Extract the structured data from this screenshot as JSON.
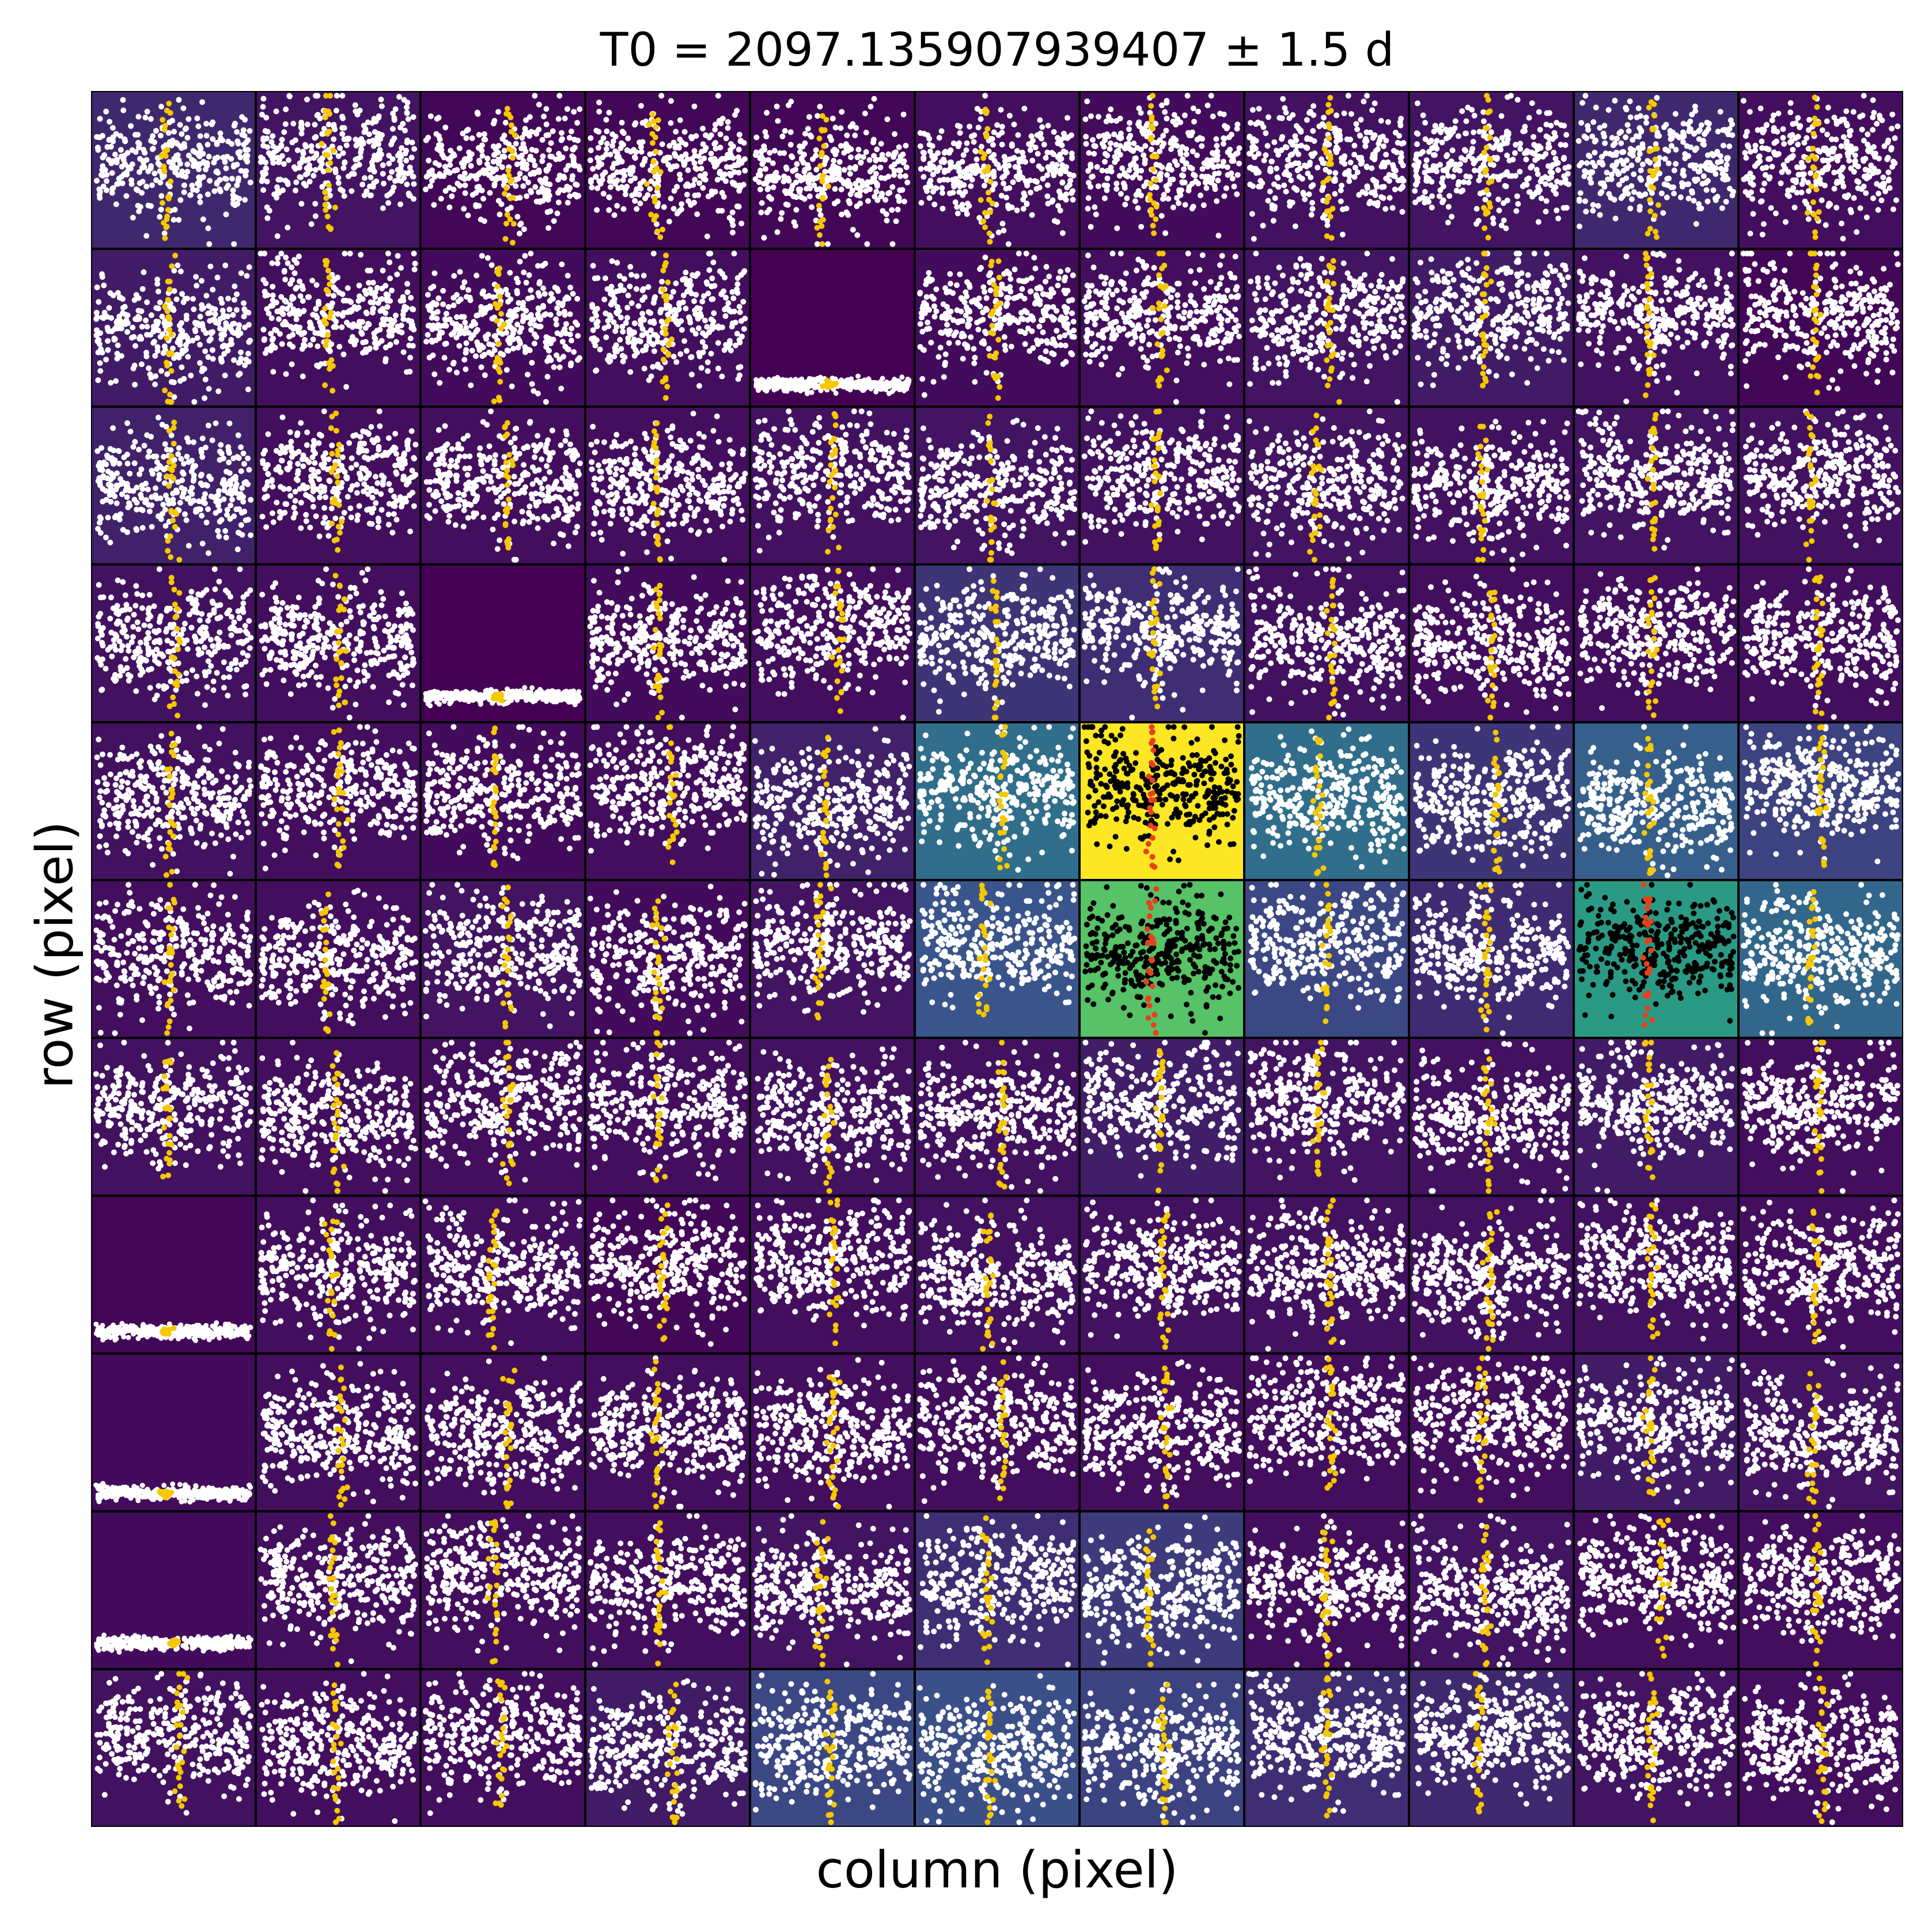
{
  "chart_data": {
    "type": "scatter",
    "title": "T0 = 2097.135907939407 ± 1.5 d",
    "xlabel": "column (pixel)",
    "ylabel": "row (pixel)",
    "grid_rows": 11,
    "grid_cols": 11,
    "ticks": false,
    "series_colors": {
      "out_of_transit": "#ffffff",
      "in_transit": "#f5c800",
      "aperture_out_of_transit": "#000000",
      "aperture_in_transit": "#e8401c"
    },
    "background_colormap": "viridis",
    "pixel_background_level": [
      [
        0.12,
        0.06,
        0.02,
        0.02,
        0.02,
        0.04,
        0.03,
        0.05,
        0.06,
        0.12,
        0.04
      ],
      [
        0.08,
        0.04,
        0.03,
        0.04,
        0.0,
        0.03,
        0.04,
        0.06,
        0.08,
        0.05,
        0.02
      ],
      [
        0.1,
        0.04,
        0.04,
        0.04,
        0.05,
        0.06,
        0.05,
        0.06,
        0.05,
        0.06,
        0.05
      ],
      [
        0.05,
        0.04,
        0.0,
        0.03,
        0.04,
        0.16,
        0.14,
        0.05,
        0.04,
        0.04,
        0.04
      ],
      [
        0.05,
        0.04,
        0.03,
        0.04,
        0.1,
        0.36,
        1.0,
        0.36,
        0.16,
        0.3,
        0.2
      ],
      [
        0.04,
        0.04,
        0.06,
        0.03,
        0.06,
        0.26,
        0.72,
        0.22,
        0.13,
        0.54,
        0.33
      ],
      [
        0.05,
        0.04,
        0.04,
        0.04,
        0.05,
        0.05,
        0.09,
        0.06,
        0.05,
        0.08,
        0.04
      ],
      [
        0.02,
        0.04,
        0.04,
        0.02,
        0.04,
        0.05,
        0.05,
        0.05,
        0.05,
        0.05,
        0.04
      ],
      [
        0.03,
        0.04,
        0.04,
        0.04,
        0.04,
        0.04,
        0.04,
        0.04,
        0.04,
        0.08,
        0.06
      ],
      [
        0.03,
        0.04,
        0.04,
        0.04,
        0.06,
        0.14,
        0.18,
        0.04,
        0.06,
        0.04,
        0.04
      ],
      [
        0.05,
        0.04,
        0.04,
        0.08,
        0.22,
        0.24,
        0.2,
        0.14,
        0.12,
        0.06,
        0.04
      ]
    ],
    "aperture_pixels": [
      [
        4,
        6
      ],
      [
        5,
        6
      ],
      [
        5,
        9
      ]
    ],
    "compressed_lightcurve_pixels": [
      [
        1,
        4
      ],
      [
        3,
        2
      ],
      [
        7,
        0
      ],
      [
        8,
        0
      ],
      [
        9,
        0
      ]
    ],
    "legend": "none"
  }
}
